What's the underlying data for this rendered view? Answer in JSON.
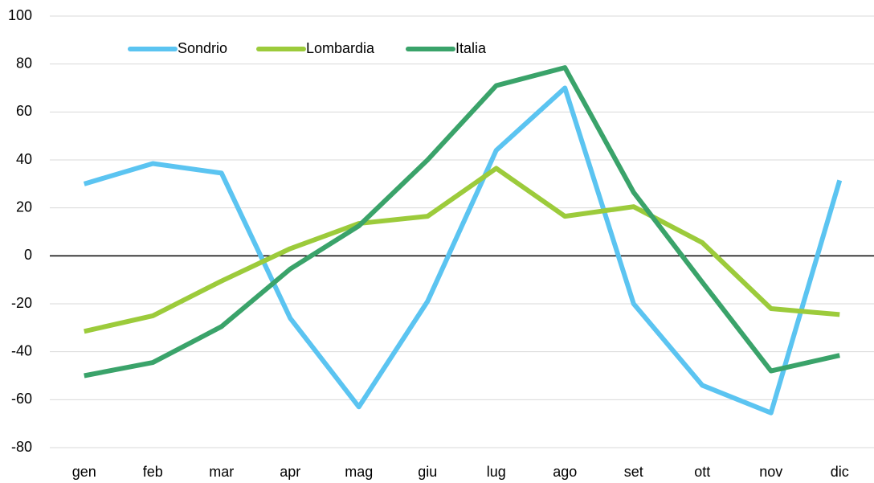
{
  "chart_data": {
    "type": "line",
    "categories": [
      "gen",
      "feb",
      "mar",
      "apr",
      "mag",
      "giu",
      "lug",
      "ago",
      "set",
      "ott",
      "nov",
      "dic"
    ],
    "series": [
      {
        "name": "Sondrio",
        "color": "#5bc4f1",
        "values": [
          30,
          38.5,
          34.5,
          -26,
          -63,
          -19,
          44,
          70,
          -20,
          -54,
          -65.5,
          31.5
        ]
      },
      {
        "name": "Lombardia",
        "color": "#9ccb3b",
        "values": [
          -31.5,
          -25,
          -10.5,
          3,
          13.5,
          16.5,
          36.5,
          16.5,
          20.5,
          5.5,
          -22,
          -24.5
        ]
      },
      {
        "name": "Italia",
        "color": "#3aa36a",
        "values": [
          -50,
          -44.5,
          -29.5,
          -5.5,
          12.5,
          40,
          71,
          78.5,
          26.5,
          -11,
          -48,
          -41.5
        ]
      }
    ],
    "ylim": [
      -80,
      100
    ],
    "yticks": [
      -80,
      -60,
      -40,
      -20,
      0,
      20,
      40,
      60,
      80,
      100
    ],
    "grid": true,
    "legend": "top"
  }
}
